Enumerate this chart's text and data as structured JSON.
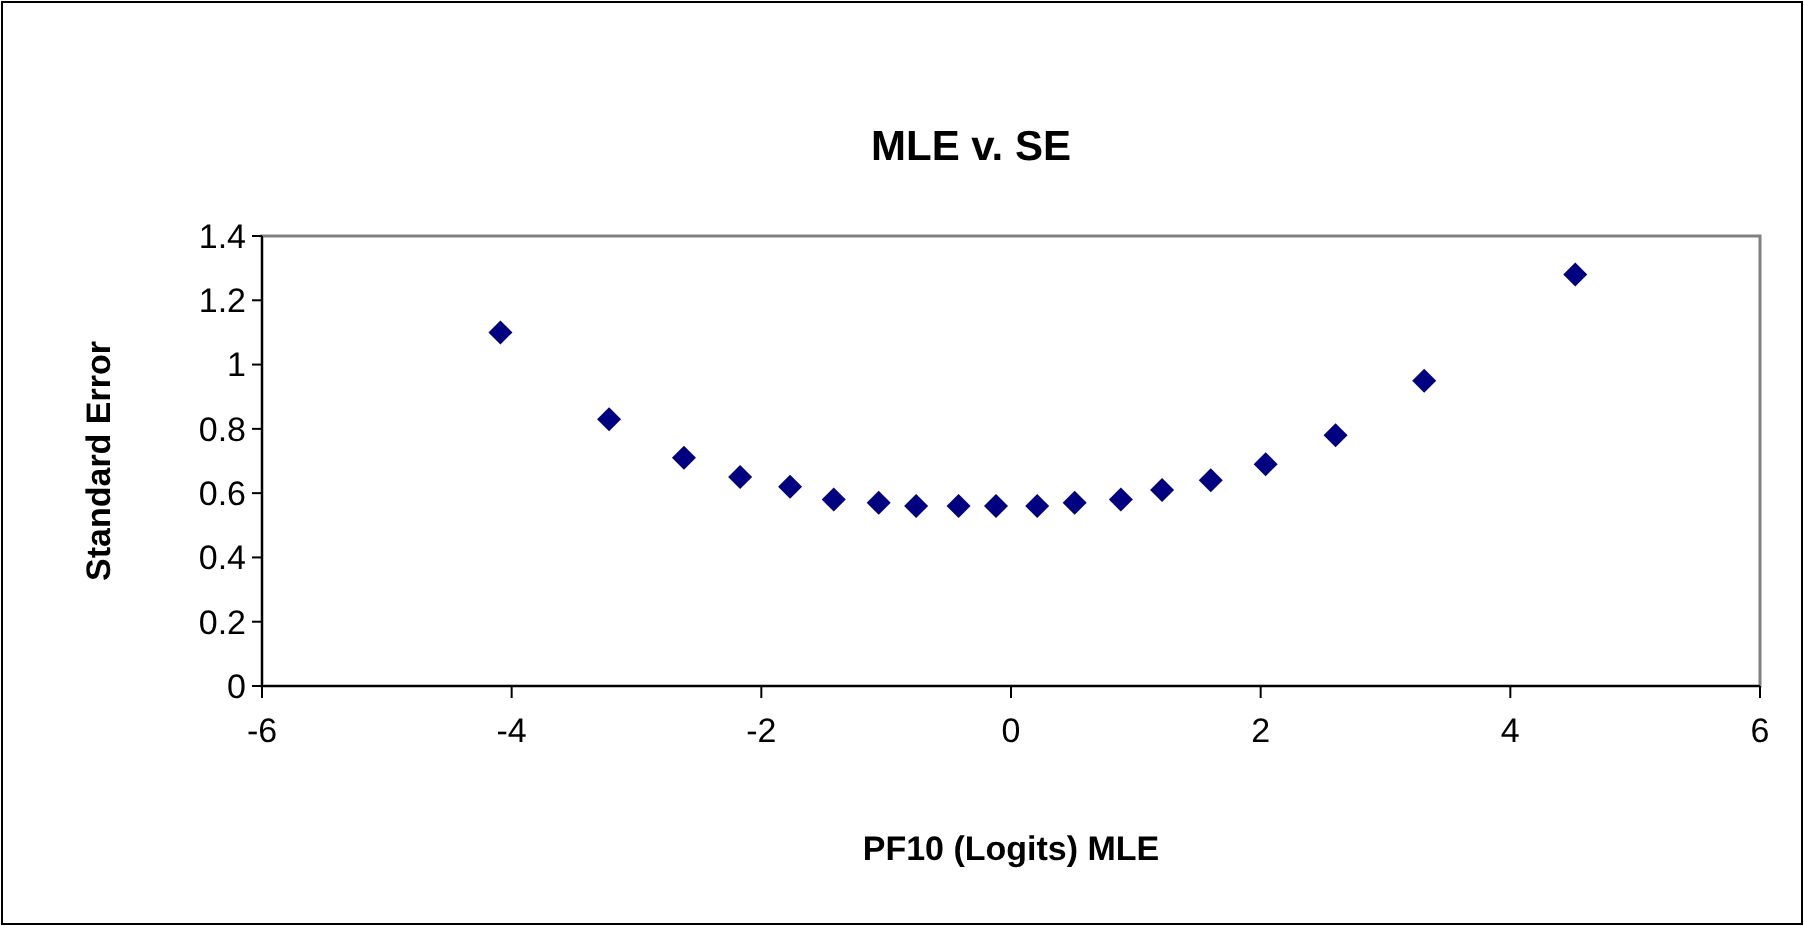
{
  "chart_data": {
    "type": "scatter",
    "title": "MLE v. SE",
    "xlabel": "PF10 (Logits) MLE",
    "ylabel": "Standard Error",
    "x": [
      -4.09,
      -3.22,
      -2.62,
      -2.17,
      -1.77,
      -1.42,
      -1.06,
      -0.76,
      -0.42,
      -0.12,
      0.21,
      0.51,
      0.88,
      1.21,
      1.6,
      2.04,
      2.6,
      3.31,
      4.52
    ],
    "series": [
      {
        "color": "#000080",
        "values": [
          1.1,
          0.83,
          0.71,
          0.65,
          0.62,
          0.58,
          0.57,
          0.56,
          0.56,
          0.56,
          0.56,
          0.57,
          0.58,
          0.61,
          0.64,
          0.69,
          0.78,
          0.95,
          1.28
        ]
      }
    ],
    "xlim": [
      -6,
      6
    ],
    "xticks": [
      -6,
      -4,
      -2,
      0,
      2,
      4,
      6
    ],
    "ylim": [
      0,
      1.4
    ],
    "yticks": [
      0,
      0.2,
      0.4,
      0.6,
      0.8,
      1,
      1.2,
      1.4
    ],
    "marker": "diamond"
  }
}
